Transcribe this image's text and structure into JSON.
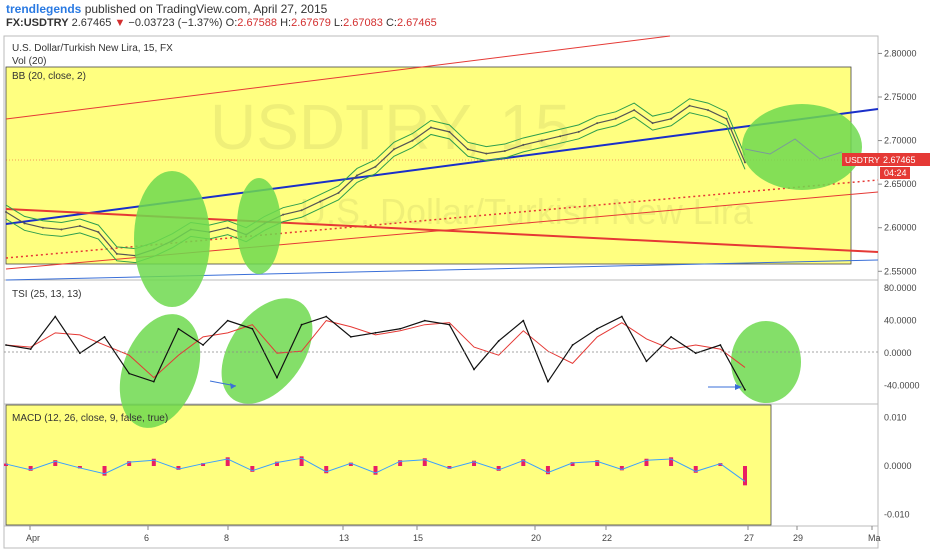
{
  "header": {
    "user": "trendlegends",
    "published_text": "published on TradingView.com, April 27, 2015",
    "symbol": "FX:USDTRY",
    "price": "2.67465",
    "change": "−0.03723 (−1.37%)",
    "o_label": "O:",
    "o_value": "2.67588",
    "h_label": "H:",
    "h_value": "2.67679",
    "l_label": "L:",
    "l_value": "2.67083",
    "c_label": "C:",
    "c_value": "2.67465"
  },
  "main_pane": {
    "title": "U.S. Dollar/Turkish New Lira, 15, FX",
    "vol_label": "Vol (20)",
    "bb_label": "BB (20, close, 2)",
    "watermark": "USDTRY, 15",
    "watermark2": "U.S. Dollar/Turkish New Lira",
    "price_tag": "USDTRY",
    "price_tag_value": "2.67465",
    "countdown": "04:24"
  },
  "tsi_pane": {
    "label": "TSI (25, 13, 13)"
  },
  "macd_pane": {
    "label": "MACD (12, 26, close, 9, false, true)"
  },
  "colors": {
    "highlight": "#ffff80",
    "ellipse": "#6fd94f",
    "price": "#555555",
    "bb": "#2e9e4d",
    "trend_blue": "#1a2fc9",
    "trend_red": "#e53935",
    "tsi": "#111111",
    "tsi_signal": "#e53935",
    "macd_pos": "#e91e63",
    "macd_line": "#3aa0ff"
  },
  "chart_data": [
    {
      "type": "line",
      "name": "price",
      "x_ticks": [
        "Apr",
        "6",
        "8",
        "13",
        "15",
        "20",
        "22",
        "27",
        "29",
        "Ma"
      ],
      "y_ticks": [
        "2.80000",
        "2.75000",
        "2.70000",
        "2.65000",
        "2.60000",
        "2.55000"
      ],
      "ylim": [
        2.54,
        2.82
      ],
      "last_price": 2.67465,
      "x": [
        0,
        3,
        6,
        9,
        12,
        15,
        18,
        21,
        24,
        27,
        30,
        33,
        36,
        39,
        42,
        45,
        48,
        51,
        54,
        57,
        60,
        63,
        66,
        69,
        72,
        75,
        78,
        81,
        84,
        87,
        90,
        93,
        96,
        99,
        102,
        105,
        108,
        111,
        114,
        117,
        120
      ],
      "values": [
        2.618,
        2.605,
        2.6,
        2.598,
        2.602,
        2.595,
        2.57,
        2.568,
        2.575,
        2.585,
        2.598,
        2.595,
        2.6,
        2.592,
        2.605,
        2.615,
        2.62,
        2.63,
        2.64,
        2.66,
        2.67,
        2.69,
        2.7,
        2.715,
        2.71,
        2.69,
        2.685,
        2.688,
        2.695,
        2.7,
        2.705,
        2.71,
        2.72,
        2.725,
        2.735,
        2.72,
        2.725,
        2.74,
        2.735,
        2.725,
        2.675
      ]
    },
    {
      "type": "line",
      "name": "TSI",
      "y_ticks": [
        "80.0000",
        "40.0000",
        "0.0000",
        "-40.0000"
      ],
      "ylim": [
        -60,
        85
      ],
      "x": [
        0,
        4,
        8,
        12,
        16,
        20,
        24,
        28,
        32,
        36,
        40,
        44,
        48,
        52,
        56,
        60,
        64,
        68,
        72,
        76,
        80,
        84,
        88,
        92,
        96,
        100,
        104,
        108,
        112,
        116,
        120
      ],
      "values": [
        10,
        5,
        45,
        0,
        20,
        -25,
        -35,
        30,
        10,
        40,
        30,
        -30,
        35,
        45,
        20,
        25,
        30,
        40,
        35,
        -20,
        15,
        40,
        -35,
        10,
        30,
        45,
        -10,
        20,
        0,
        10,
        -45
      ]
    },
    {
      "type": "bar",
      "name": "MACD histogram",
      "y_ticks": [
        "0.010",
        "0.0000",
        "-0.010"
      ],
      "ylim": [
        -0.012,
        0.012
      ],
      "x": [
        0,
        4,
        8,
        12,
        16,
        20,
        24,
        28,
        32,
        36,
        40,
        44,
        48,
        52,
        56,
        60,
        64,
        68,
        72,
        76,
        80,
        84,
        88,
        92,
        96,
        100,
        104,
        108,
        112,
        116,
        120
      ],
      "values": [
        0.0005,
        -0.001,
        0.0012,
        -0.0005,
        -0.002,
        0.001,
        0.0015,
        -0.0008,
        0.0006,
        0.0018,
        -0.0012,
        0.0009,
        0.002,
        -0.0015,
        0.0007,
        -0.0018,
        0.0012,
        0.0016,
        -0.0006,
        0.0011,
        -0.001,
        0.0014,
        -0.0017,
        0.0008,
        0.0012,
        -0.0009,
        0.0015,
        0.0018,
        -0.0014,
        0.0006,
        -0.004
      ]
    }
  ]
}
